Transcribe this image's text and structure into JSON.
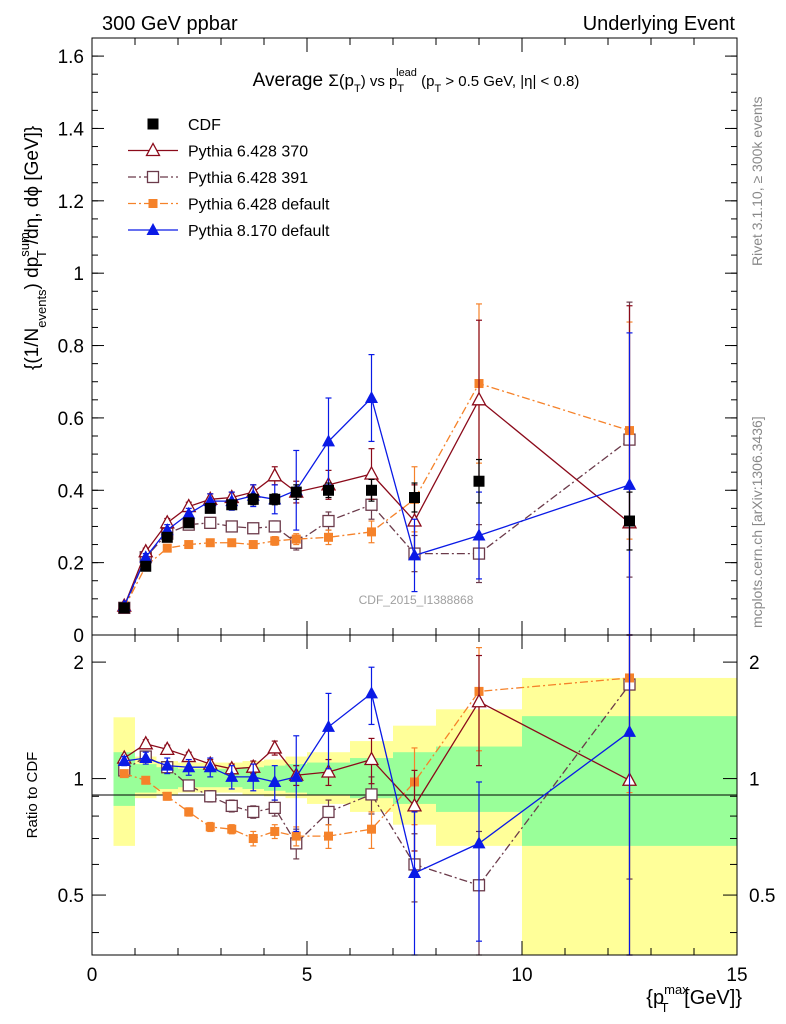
{
  "header": {
    "left": "300 GeV ppbar",
    "right": "Underlying Event"
  },
  "side": {
    "rivet": "Rivet 3.1.10, ≥ 300k events",
    "mcplots": "mcplots.cern.ch [arXiv:1306.3436]"
  },
  "colors": {
    "cdf": "#000000",
    "p370": "#8b0a1a",
    "p391": "#6b3a4a",
    "p6def": "#f5822a",
    "p8def": "#0a1ae6",
    "band_green": "#99ff99",
    "band_yellow": "#ffff99"
  },
  "chart_data": [
    {
      "type": "scatter",
      "panel": "main",
      "title_parts": {
        "a": "Average ",
        "b": "Σ(p",
        "c": "T",
        "d": ") vs p",
        "e": "T",
        "f": "lead",
        "g": " (p",
        "h": "T",
        "i": " > 0.5 GeV, |η| < 0.8)"
      },
      "ylabel_parts": {
        "a": "{(1/N",
        "b": "events",
        "c": ") dp",
        "d": "sum",
        "e": "T",
        "f": "/dη, dϕ [GeV]}"
      },
      "xlim": [
        0,
        15
      ],
      "ylim": [
        0,
        1.65
      ],
      "yticks": [
        0,
        0.2,
        0.4,
        0.6,
        0.8,
        1,
        1.2,
        1.4,
        1.6
      ],
      "ytick_labels": [
        "0",
        "0.2",
        "0.4",
        "0.6",
        "0.8",
        "1",
        "1.2",
        "1.4",
        "1.6"
      ],
      "watermark": "CDF_2015_I1388868",
      "legend_position": "top-left",
      "series": [
        {
          "name": "CDF",
          "key": "cdf",
          "marker": "square-filled",
          "line": "none",
          "x": [
            0.75,
            1.25,
            1.75,
            2.25,
            2.75,
            3.25,
            3.75,
            4.25,
            4.75,
            5.5,
            6.5,
            7.5,
            9.0,
            12.5
          ],
          "y": [
            0.075,
            0.19,
            0.27,
            0.31,
            0.35,
            0.36,
            0.375,
            0.375,
            0.395,
            0.4,
            0.4,
            0.38,
            0.425,
            0.315
          ],
          "err": [
            0.008,
            0.01,
            0.012,
            0.012,
            0.012,
            0.012,
            0.015,
            0.015,
            0.02,
            0.02,
            0.03,
            0.04,
            0.06,
            0.08
          ]
        },
        {
          "name": "Pythia 6.428 370",
          "key": "p370",
          "marker": "triangle-open",
          "line": "solid",
          "x": [
            0.75,
            1.25,
            1.75,
            2.25,
            2.75,
            3.25,
            3.75,
            4.25,
            4.75,
            5.5,
            6.5,
            7.5,
            9.0,
            12.5
          ],
          "y": [
            0.08,
            0.23,
            0.31,
            0.355,
            0.375,
            0.38,
            0.395,
            0.44,
            0.395,
            0.415,
            0.445,
            0.315,
            0.65,
            0.31
          ],
          "err": [
            0.005,
            0.01,
            0.012,
            0.012,
            0.015,
            0.015,
            0.02,
            0.025,
            0.03,
            0.04,
            0.07,
            0.1,
            0.22,
            0.6
          ]
        },
        {
          "name": "Pythia 6.428 391",
          "key": "p391",
          "marker": "square-open",
          "line": "dashdot",
          "x": [
            0.75,
            1.25,
            1.75,
            2.25,
            2.75,
            3.25,
            3.75,
            4.25,
            4.75,
            5.5,
            6.5,
            7.5,
            9.0,
            12.5
          ],
          "y": [
            0.075,
            0.215,
            0.28,
            0.305,
            0.31,
            0.3,
            0.295,
            0.3,
            0.255,
            0.315,
            0.36,
            0.225,
            0.225,
            0.54
          ],
          "err": [
            0.005,
            0.008,
            0.01,
            0.01,
            0.01,
            0.012,
            0.012,
            0.015,
            0.02,
            0.025,
            0.04,
            0.05,
            0.08,
            0.38
          ]
        },
        {
          "name": "Pythia 6.428 default",
          "key": "p6def",
          "marker": "square-small",
          "line": "dashdot",
          "x": [
            0.75,
            1.25,
            1.75,
            2.25,
            2.75,
            3.25,
            3.75,
            4.25,
            4.75,
            5.5,
            6.5,
            7.5,
            9.0,
            12.5
          ],
          "y": [
            0.075,
            0.19,
            0.24,
            0.25,
            0.255,
            0.255,
            0.25,
            0.26,
            0.265,
            0.27,
            0.285,
            0.375,
            0.695,
            0.565
          ],
          "err": [
            0.004,
            0.006,
            0.008,
            0.008,
            0.008,
            0.008,
            0.01,
            0.012,
            0.015,
            0.02,
            0.03,
            0.09,
            0.22,
            0.3
          ]
        },
        {
          "name": "Pythia 8.170 default",
          "key": "p8def",
          "marker": "triangle-filled",
          "line": "solid",
          "x": [
            0.75,
            1.25,
            1.75,
            2.25,
            2.75,
            3.25,
            3.75,
            4.25,
            4.75,
            5.5,
            6.5,
            7.5,
            9.0,
            12.5
          ],
          "y": [
            0.08,
            0.215,
            0.29,
            0.335,
            0.37,
            0.37,
            0.385,
            0.375,
            0.4,
            0.535,
            0.655,
            0.22,
            0.275,
            0.415
          ],
          "err": [
            0.005,
            0.01,
            0.015,
            0.015,
            0.02,
            0.025,
            0.03,
            0.04,
            0.11,
            0.12,
            0.12,
            0.1,
            0.12,
            0.42
          ]
        }
      ]
    },
    {
      "type": "scatter",
      "panel": "ratio",
      "ylabel": "Ratio to CDF",
      "xlabel_parts": {
        "a": "{p",
        "b": "max",
        "c": "T",
        "d": " [GeV]}"
      },
      "xlim": [
        0,
        15
      ],
      "ylim": [
        0.35,
        2.35
      ],
      "log_y": true,
      "xticks": [
        0,
        5,
        10,
        15
      ],
      "xtick_labels": [
        "0",
        "5",
        "10",
        "15"
      ],
      "yticks": [
        0.5,
        1,
        2
      ],
      "ytick_labels": [
        "0.5",
        "1",
        "2"
      ],
      "bands": {
        "edges": [
          0.5,
          1.0,
          1.5,
          2.0,
          2.5,
          3.0,
          3.5,
          4.0,
          4.5,
          5.0,
          6.0,
          7.0,
          8.0,
          10.0,
          15.0
        ],
        "green_lo": [
          0.85,
          0.92,
          0.94,
          0.95,
          0.95,
          0.95,
          0.94,
          0.93,
          0.92,
          0.91,
          0.89,
          0.86,
          0.82,
          0.67
        ],
        "green_hi": [
          1.17,
          1.09,
          1.07,
          1.06,
          1.06,
          1.06,
          1.07,
          1.08,
          1.09,
          1.1,
          1.13,
          1.17,
          1.21,
          1.45
        ],
        "yellow_lo": [
          0.67,
          0.89,
          0.91,
          0.92,
          0.92,
          0.92,
          0.91,
          0.9,
          0.89,
          0.86,
          0.82,
          0.76,
          0.67,
          0.35
        ],
        "yellow_hi": [
          1.44,
          1.14,
          1.11,
          1.1,
          1.1,
          1.1,
          1.11,
          1.12,
          1.14,
          1.17,
          1.25,
          1.37,
          1.51,
          1.82
        ]
      },
      "series": [
        {
          "key": "p370",
          "marker": "triangle-open",
          "line": "solid",
          "x": [
            0.75,
            1.25,
            1.75,
            2.25,
            2.75,
            3.25,
            3.75,
            4.25,
            4.75,
            5.5,
            6.5,
            7.5,
            9.0,
            12.5
          ],
          "y": [
            1.13,
            1.23,
            1.19,
            1.14,
            1.09,
            1.06,
            1.07,
            1.2,
            1.02,
            1.04,
            1.12,
            0.85,
            1.58,
            0.99
          ],
          "err": [
            0.02,
            0.03,
            0.03,
            0.03,
            0.03,
            0.03,
            0.04,
            0.05,
            0.06,
            0.08,
            0.15,
            0.2,
            0.5,
            1.5
          ]
        },
        {
          "key": "p391",
          "marker": "square-open",
          "line": "dashdot",
          "x": [
            0.75,
            1.25,
            1.75,
            2.25,
            2.75,
            3.25,
            3.75,
            4.25,
            4.75,
            5.5,
            6.5,
            7.5,
            9.0,
            12.5
          ],
          "y": [
            1.05,
            1.14,
            1.07,
            0.96,
            0.9,
            0.85,
            0.82,
            0.84,
            0.68,
            0.82,
            0.91,
            0.6,
            0.53,
            1.75
          ],
          "err": [
            0.02,
            0.02,
            0.03,
            0.03,
            0.03,
            0.03,
            0.03,
            0.04,
            0.06,
            0.06,
            0.1,
            0.12,
            0.2,
            1.2
          ]
        },
        {
          "key": "p6def",
          "marker": "square-small",
          "line": "dashdot",
          "x": [
            0.75,
            1.25,
            1.75,
            2.25,
            2.75,
            3.25,
            3.75,
            4.25,
            4.75,
            5.5,
            6.5,
            7.5,
            9.0,
            12.5
          ],
          "y": [
            1.03,
            0.99,
            0.9,
            0.82,
            0.75,
            0.74,
            0.7,
            0.73,
            0.71,
            0.71,
            0.74,
            0.98,
            1.68,
            1.82
          ],
          "err": [
            0.02,
            0.02,
            0.02,
            0.02,
            0.02,
            0.02,
            0.03,
            0.03,
            0.04,
            0.05,
            0.08,
            0.22,
            0.5,
            0.9
          ]
        },
        {
          "key": "p8def",
          "marker": "triangle-filled",
          "line": "solid",
          "x": [
            0.75,
            1.25,
            1.75,
            2.25,
            2.75,
            3.25,
            3.75,
            4.25,
            4.75,
            5.5,
            6.5,
            7.5,
            9.0,
            12.5
          ],
          "y": [
            1.11,
            1.13,
            1.08,
            1.07,
            1.07,
            1.01,
            1.01,
            0.98,
            1.01,
            1.36,
            1.66,
            0.57,
            0.68,
            1.32
          ],
          "err": [
            0.03,
            0.04,
            0.05,
            0.05,
            0.06,
            0.07,
            0.08,
            0.1,
            0.28,
            0.3,
            0.28,
            0.25,
            0.3,
            1.5
          ]
        }
      ]
    }
  ]
}
